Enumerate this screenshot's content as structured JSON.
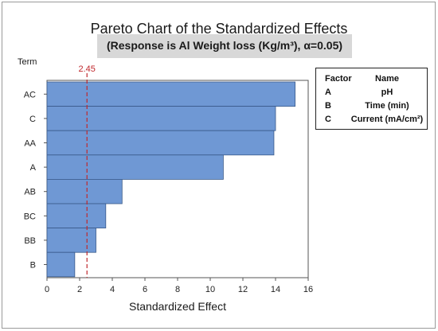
{
  "chart_data": {
    "type": "bar",
    "orientation": "horizontal",
    "title": "Pareto Chart of the Standardized Effects",
    "subtitle": "(Response is Al Weight loss (Kg/m³), α=0.05)",
    "xlabel": "Standardized Effect",
    "ylabel": "Term",
    "categories": [
      "AC",
      "C",
      "AA",
      "A",
      "AB",
      "BC",
      "BB",
      "B"
    ],
    "values": [
      15.2,
      14.0,
      13.9,
      10.8,
      4.6,
      3.6,
      3.0,
      1.7
    ],
    "xlim": [
      0,
      16
    ],
    "xticks": [
      0,
      2,
      4,
      6,
      8,
      10,
      12,
      14,
      16
    ],
    "reference_line": {
      "value": 2.45,
      "label": "2.45",
      "color": "#c0282d"
    },
    "bar_color": "#6f98d4",
    "bar_edge_color": "#3a5a8a",
    "grid": false,
    "legend": {
      "placement": "right",
      "header_key": "Factor",
      "header_name": "Name",
      "entries": [
        {
          "key": "A",
          "name": "pH"
        },
        {
          "key": "B",
          "name": "Time (min)"
        },
        {
          "key": "C",
          "name": "Current (mA/cm²)"
        }
      ]
    }
  }
}
